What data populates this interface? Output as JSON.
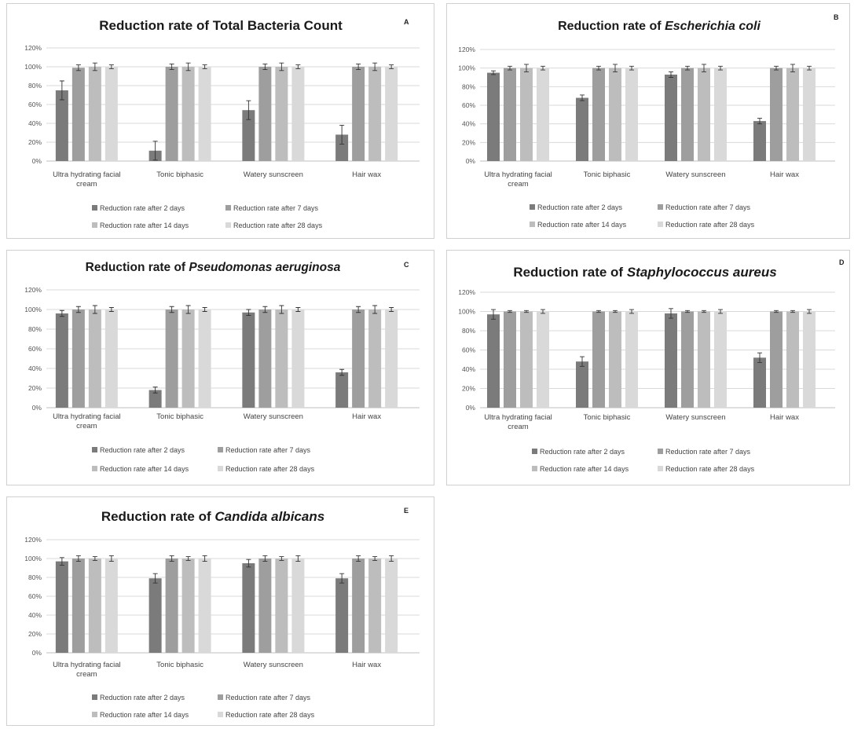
{
  "legend_labels": [
    "Reduction rate after 2 days",
    "Reduction rate after 7 days",
    "Reduction rate after 14 days",
    "Reduction rate after 28 days"
  ],
  "series_colors": [
    "#7b7b7b",
    "#9e9e9e",
    "#bdbdbd",
    "#d9d9d9"
  ],
  "chart_data": [
    {
      "type": "bar",
      "letter": "A",
      "title_prefix": "Reduction rate of ",
      "title_italic": "",
      "title_plain_rest": "Total Bacteria Count",
      "categories": [
        "Ultra hydrating facial cream",
        "Tonic biphasic",
        "Watery sunscreen",
        "Hair wax"
      ],
      "ylim": [
        0,
        120
      ],
      "yticks": [
        "0%",
        "20%",
        "40%",
        "60%",
        "80%",
        "100%",
        "120%"
      ],
      "series": [
        {
          "name": "Reduction rate after 2 days",
          "values": [
            75,
            11,
            54,
            28
          ],
          "errors": [
            10,
            10,
            10,
            10
          ]
        },
        {
          "name": "Reduction rate after 7 days",
          "values": [
            99,
            100,
            100,
            100
          ],
          "errors": [
            3,
            3,
            3,
            3
          ]
        },
        {
          "name": "Reduction rate after 14 days",
          "values": [
            100,
            100,
            100,
            100
          ],
          "errors": [
            4,
            4,
            4,
            4
          ]
        },
        {
          "name": "Reduction rate after 28 days",
          "values": [
            100,
            100,
            100,
            100
          ],
          "errors": [
            2,
            2,
            2,
            2
          ]
        }
      ]
    },
    {
      "type": "bar",
      "letter": "B",
      "title_prefix": "Reduction rate of ",
      "title_italic": "Escherichia coli",
      "title_plain_rest": "",
      "categories": [
        "Ultra hydrating facial cream",
        "Tonic biphasic",
        "Watery sunscreen",
        "Hair wax"
      ],
      "ylim": [
        0,
        120
      ],
      "yticks": [
        "0%",
        "20%",
        "40%",
        "60%",
        "80%",
        "100%",
        "120%"
      ],
      "series": [
        {
          "name": "Reduction rate after 2 days",
          "values": [
            95,
            68,
            93,
            43
          ],
          "errors": [
            2,
            3,
            3,
            3
          ]
        },
        {
          "name": "Reduction rate after 7 days",
          "values": [
            100,
            100,
            100,
            100
          ],
          "errors": [
            2,
            2,
            2,
            2
          ]
        },
        {
          "name": "Reduction rate after 14 days",
          "values": [
            100,
            100,
            100,
            100
          ],
          "errors": [
            4,
            4,
            4,
            4
          ]
        },
        {
          "name": "Reduction rate after 28 days",
          "values": [
            100,
            100,
            100,
            100
          ],
          "errors": [
            2,
            2,
            2,
            2
          ]
        }
      ]
    },
    {
      "type": "bar",
      "letter": "C",
      "title_prefix": "Reduction rate of ",
      "title_italic": "Pseudomonas  aeruginosa",
      "title_plain_rest": "",
      "categories": [
        "Ultra hydrating facial cream",
        "Tonic biphasic",
        "Watery sunscreen",
        "Hair wax"
      ],
      "ylim": [
        0,
        120
      ],
      "yticks": [
        "0%",
        "20%",
        "40%",
        "60%",
        "80%",
        "100%",
        "120%"
      ],
      "series": [
        {
          "name": "Reduction rate after 2 days",
          "values": [
            96,
            18,
            97,
            36
          ],
          "errors": [
            3,
            3,
            3,
            3
          ]
        },
        {
          "name": "Reduction rate after 7 days",
          "values": [
            100,
            100,
            100,
            100
          ],
          "errors": [
            3,
            3,
            3,
            3
          ]
        },
        {
          "name": "Reduction rate after 14 days",
          "values": [
            100,
            100,
            100,
            100
          ],
          "errors": [
            4,
            4,
            4,
            4
          ]
        },
        {
          "name": "Reduction rate after 28 days",
          "values": [
            100,
            100,
            100,
            100
          ],
          "errors": [
            2,
            2,
            2,
            2
          ]
        }
      ]
    },
    {
      "type": "bar",
      "letter": "D",
      "title_prefix": "Reduction rate of ",
      "title_italic": "Staphylococcus aureus",
      "title_plain_rest": "",
      "categories": [
        "Ultra hydrating facial cream",
        "Tonic biphasic",
        "Watery sunscreen",
        "Hair wax"
      ],
      "ylim": [
        0,
        120
      ],
      "yticks": [
        "0%",
        "20%",
        "40%",
        "60%",
        "80%",
        "100%",
        "120%"
      ],
      "series": [
        {
          "name": "Reduction rate after 2 days",
          "values": [
            97,
            48,
            98,
            52
          ],
          "errors": [
            5,
            5,
            5,
            5
          ]
        },
        {
          "name": "Reduction rate after 7 days",
          "values": [
            100,
            100,
            100,
            100
          ],
          "errors": [
            1,
            1,
            1,
            1
          ]
        },
        {
          "name": "Reduction rate after 14 days",
          "values": [
            100,
            100,
            100,
            100
          ],
          "errors": [
            1,
            1,
            1,
            1
          ]
        },
        {
          "name": "Reduction rate after 28 days",
          "values": [
            100,
            100,
            100,
            100
          ],
          "errors": [
            2,
            2,
            2,
            2
          ]
        }
      ]
    },
    {
      "type": "bar",
      "letter": "E",
      "title_prefix": "Reduction rate of ",
      "title_italic": "Candida albicans",
      "title_plain_rest": "",
      "categories": [
        "Ultra hydrating facial cream",
        "Tonic biphasic",
        "Watery sunscreen",
        "Hair wax"
      ],
      "ylim": [
        0,
        120
      ],
      "yticks": [
        "0%",
        "20%",
        "40%",
        "60%",
        "80%",
        "100%",
        "120%"
      ],
      "series": [
        {
          "name": "Reduction rate after 2 days",
          "values": [
            97,
            79,
            95,
            79
          ],
          "errors": [
            4,
            5,
            4,
            5
          ]
        },
        {
          "name": "Reduction rate after 7 days",
          "values": [
            100,
            100,
            100,
            100
          ],
          "errors": [
            3,
            3,
            3,
            3
          ]
        },
        {
          "name": "Reduction rate after 14 days",
          "values": [
            100,
            100,
            100,
            100
          ],
          "errors": [
            2,
            2,
            2,
            2
          ]
        },
        {
          "name": "Reduction rate after 28 days",
          "values": [
            100,
            100,
            100,
            100
          ],
          "errors": [
            3,
            3,
            3,
            3
          ]
        }
      ]
    }
  ]
}
